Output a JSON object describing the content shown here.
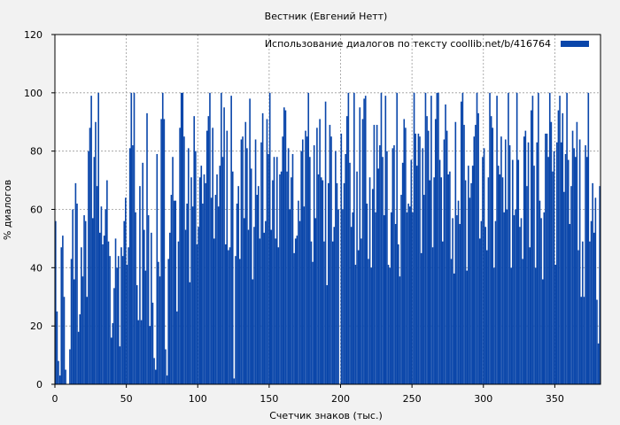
{
  "chart_data": {
    "type": "area",
    "title": "Вестник (Евгений Нетт)",
    "xlabel": "Счетчик знаков (тыс.)",
    "ylabel": "% диалогов",
    "xlim": [
      0,
      382
    ],
    "ylim": [
      0,
      120
    ],
    "x_ticks": [
      0,
      50,
      100,
      150,
      200,
      250,
      300,
      350
    ],
    "y_ticks": [
      0,
      20,
      40,
      60,
      80,
      100,
      120
    ],
    "grid": true,
    "legend_position": "top-right",
    "series": [
      {
        "name": "Использование диалогов по тексту  coollib.net/b/416764",
        "color": "#0a46aa",
        "step": 1,
        "values": [
          56,
          25,
          8,
          3,
          47,
          51,
          30,
          5,
          0,
          0,
          12,
          43,
          60,
          36,
          69,
          62,
          18,
          24,
          47,
          37,
          58,
          56,
          30,
          80,
          88,
          99,
          57,
          78,
          90,
          68,
          100,
          52,
          61,
          48,
          51,
          60,
          70,
          49,
          44,
          16,
          21,
          33,
          50,
          40,
          44,
          13,
          47,
          44,
          56,
          64,
          41,
          47,
          81,
          100,
          82,
          100,
          59,
          34,
          22,
          68,
          22,
          76,
          53,
          39,
          93,
          58,
          20,
          52,
          28,
          9,
          5,
          79,
          42,
          37,
          91,
          100,
          91,
          12,
          3,
          43,
          52,
          65,
          78,
          63,
          63,
          25,
          49,
          88,
          100,
          100,
          85,
          53,
          62,
          81,
          35,
          71,
          61,
          92,
          80,
          48,
          54,
          71,
          75,
          62,
          72,
          69,
          87,
          92,
          100,
          64,
          88,
          50,
          65,
          72,
          61,
          75,
          100,
          78,
          95,
          48,
          87,
          46,
          47,
          99,
          73,
          2,
          44,
          62,
          68,
          43,
          84,
          85,
          57,
          90,
          81,
          53,
          98,
          74,
          36,
          54,
          84,
          65,
          68,
          50,
          83,
          93,
          52,
          56,
          91,
          79,
          100,
          53,
          70,
          78,
          50,
          78,
          47,
          72,
          73,
          85,
          95,
          94,
          73,
          81,
          60,
          71,
          79,
          45,
          50,
          51,
          63,
          56,
          80,
          84,
          61,
          87,
          85,
          100,
          78,
          49,
          42,
          82,
          57,
          88,
          72,
          91,
          71,
          70,
          49,
          97,
          34,
          69,
          89,
          85,
          49,
          54,
          80,
          69,
          60,
          0,
          86,
          60,
          69,
          79,
          92,
          100,
          76,
          54,
          59,
          100,
          41,
          73,
          46,
          95,
          50,
          91,
          98,
          99,
          62,
          43,
          71,
          40,
          67,
          89,
          59,
          89,
          74,
          82,
          100,
          78,
          58,
          99,
          80,
          41,
          40,
          59,
          81,
          82,
          55,
          100,
          48,
          37,
          65,
          76,
          91,
          88,
          59,
          62,
          61,
          77,
          59,
          100,
          86,
          75,
          86,
          85,
          45,
          81,
          65,
          100,
          92,
          87,
          70,
          99,
          47,
          71,
          91,
          100,
          100,
          77,
          71,
          49,
          84,
          96,
          87,
          72,
          73,
          43,
          57,
          38,
          90,
          58,
          63,
          55,
          97,
          100,
          89,
          70,
          39,
          75,
          64,
          69,
          75,
          85,
          89,
          100,
          93,
          50,
          56,
          78,
          81,
          54,
          46,
          71,
          100,
          92,
          88,
          40,
          56,
          99,
          75,
          72,
          85,
          71,
          59,
          84,
          60,
          100,
          82,
          40,
          77,
          58,
          60,
          100,
          77,
          54,
          57,
          43,
          85,
          87,
          68,
          83,
          47,
          94,
          99,
          75,
          40,
          83,
          100,
          63,
          57,
          36,
          59,
          86,
          86,
          78,
          100,
          90,
          73,
          80,
          41,
          83,
          94,
          99,
          83,
          93,
          66,
          79,
          100,
          77,
          55,
          68,
          87,
          81,
          78,
          90,
          46,
          84,
          30,
          49,
          30,
          82,
          78,
          100,
          49,
          56,
          69,
          52,
          64,
          29,
          14,
          68,
          0
        ]
      }
    ]
  }
}
